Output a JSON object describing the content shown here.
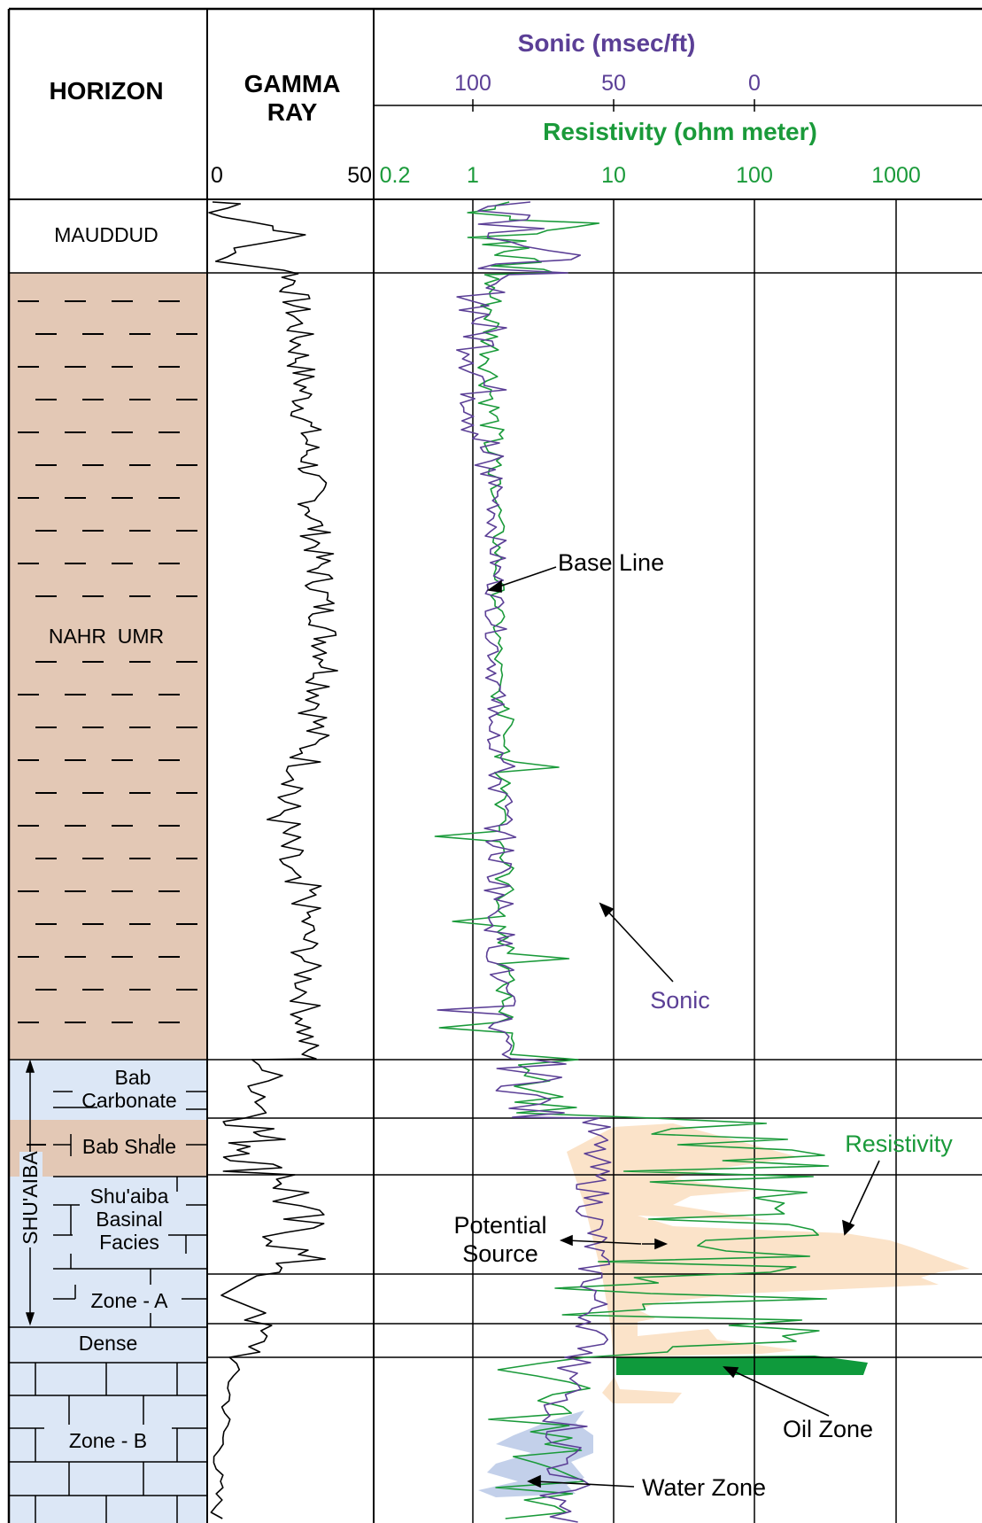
{
  "header": {
    "horizon": "HORIZON",
    "gamma_ray_line1": "GAMMA",
    "gamma_ray_line2": "RAY",
    "sonic_title": "Sonic (msec/ft)",
    "resistivity_title": "Resistivity (ohm meter)",
    "gamma_ticks": [
      "0",
      "50"
    ],
    "sonic_ticks": [
      "100",
      "50",
      "0"
    ],
    "resistivity_ticks": [
      "0.2",
      "1",
      "10",
      "100",
      "1000"
    ]
  },
  "horizons": {
    "mauddud": "MAUDDUD",
    "nahr_umr": "NAHR  UMR",
    "bab_carbonate_1": "Bab",
    "bab_carbonate_2": "Carbonate",
    "bab_shale": "Bab Shale",
    "shuaiba": "SHU'AIBA",
    "basinal_1": "Shu'aiba",
    "basinal_2": "Basinal",
    "basinal_3": "Facies",
    "zone_a": "Zone - A",
    "dense": "Dense",
    "zone_b": "Zone - B"
  },
  "annotations": {
    "base_line": "Base Line",
    "sonic": "Sonic",
    "resistivity": "Resistivity",
    "potential_source_1": "Potential",
    "potential_source_2": "Source",
    "oil_zone": "Oil Zone",
    "water_zone": "Water Zone"
  },
  "colors": {
    "sonic": "#5b3f96",
    "resistivity": "#1a9a3a",
    "shale_fill": "#e3c8b5",
    "carbonate_fill": "#dce7f6",
    "source_fill": "#fbe3c9",
    "oil_fill": "#0f9a3c",
    "water_fill": "#c3d0ea"
  }
}
